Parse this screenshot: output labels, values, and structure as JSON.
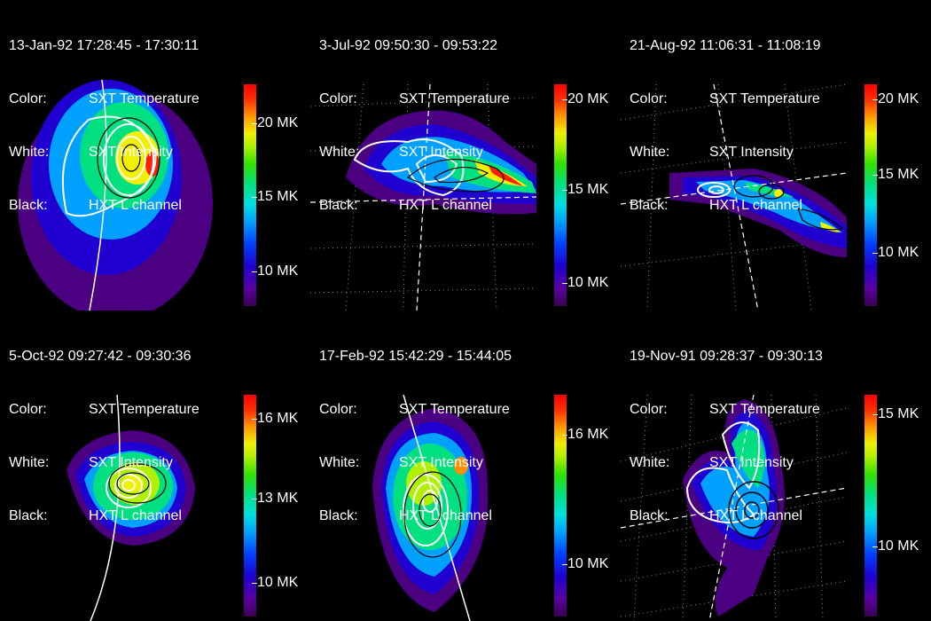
{
  "panels": [
    {
      "date": "13-Jan-92 17:28:45 - 17:30:11",
      "ticks": [
        "20 MK",
        "15 MK",
        "10 MK"
      ],
      "tick_fraction": [
        0.18,
        0.52,
        0.84
      ]
    },
    {
      "date": "3-Jul-92 09:50:30 - 09:53:22",
      "ticks": [
        "20 MK",
        "15 MK",
        "10 MK"
      ],
      "tick_fraction": [
        0.08,
        0.48,
        0.9
      ]
    },
    {
      "date": "21-Aug-92 11:06:31 - 11:08:19",
      "ticks": [
        "20 MK",
        "15 MK",
        "10 MK"
      ],
      "tick_fraction": [
        0.08,
        0.4,
        0.75
      ]
    },
    {
      "date": "5-Oct-92 09:27:42 - 09:30:36",
      "ticks": [
        "16 MK",
        "13 MK",
        "10 MK"
      ],
      "tick_fraction": [
        0.12,
        0.48,
        0.86
      ]
    },
    {
      "date": "17-Feb-92 15:42:29 - 15:44:05",
      "ticks": [
        "16 MK",
        "10 MK"
      ],
      "tick_fraction": [
        0.2,
        0.78
      ]
    },
    {
      "date": "19-Nov-91 09:28:37 - 09:30:13",
      "ticks": [
        "15 MK",
        "10 MK"
      ],
      "tick_fraction": [
        0.1,
        0.68
      ]
    }
  ],
  "legend": {
    "color_label": "Color:",
    "color_value": "SXT Temperature",
    "white_label": "White:",
    "white_value": "SXT Intensity",
    "black_label": "Black:",
    "black_value": "HXT L channel"
  },
  "colors": {
    "hot": "#ff2000",
    "warm": "#f0f000",
    "mid": "#00e080",
    "cool": "#00a0ff",
    "cold": "#2000d0",
    "faint": "#4a0080"
  }
}
